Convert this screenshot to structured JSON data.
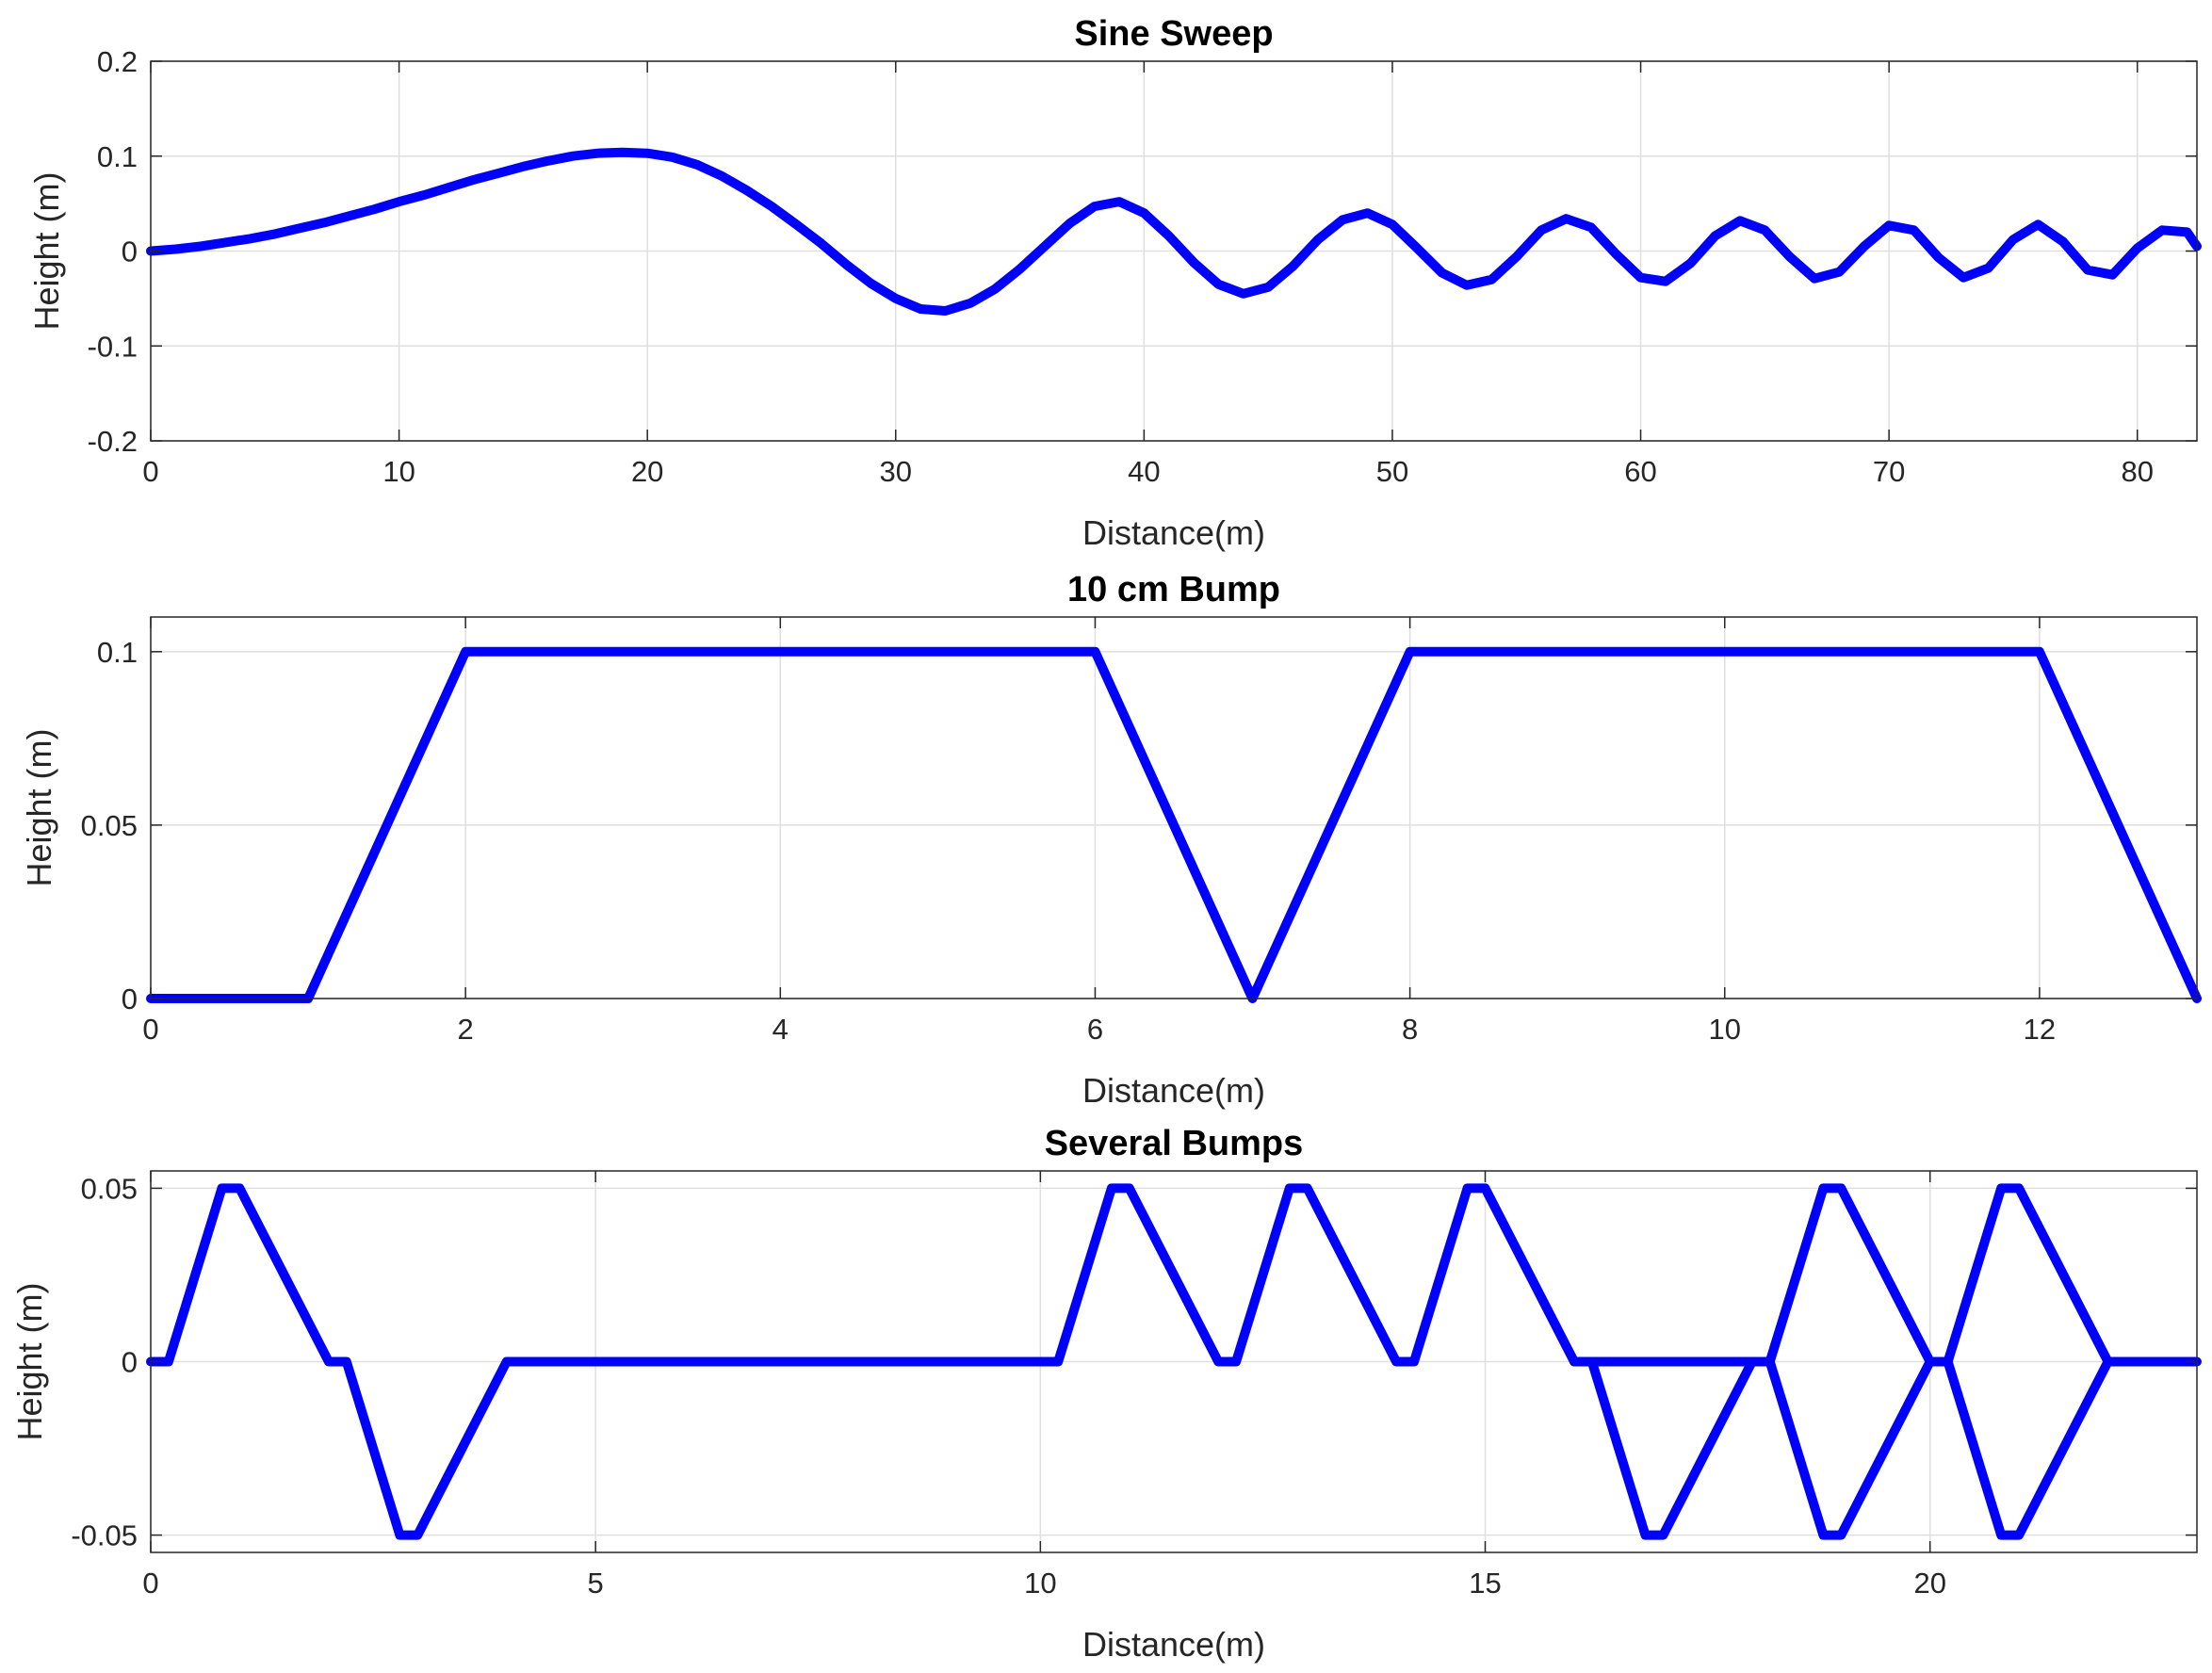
{
  "chart_data": [
    {
      "type": "line",
      "title": "Sine Sweep",
      "xlabel": "Distance(m)",
      "ylabel": "Height (m)",
      "xlim": [
        0,
        82.4
      ],
      "ylim": [
        -0.2,
        0.2
      ],
      "xticks": [
        0,
        10,
        20,
        30,
        40,
        50,
        60,
        70,
        80
      ],
      "xtick_labels": [
        "0",
        "10",
        "20",
        "30",
        "40",
        "50",
        "60",
        "70",
        "80"
      ],
      "yticks": [
        -0.2,
        -0.1,
        0,
        0.1,
        0.2
      ],
      "ytick_labels": [
        "-0.2",
        "-0.1",
        "0",
        "0.1",
        "0.2"
      ],
      "grid": true,
      "color": "#0000ff",
      "series": [
        {
          "x": [
            0,
            1,
            2,
            3,
            4,
            5,
            6,
            7,
            8,
            9,
            10,
            11,
            12,
            13,
            14,
            15,
            16,
            17,
            18,
            19,
            20,
            21,
            22,
            23,
            24,
            25,
            26,
            27,
            28,
            29,
            30,
            31,
            32,
            33,
            34,
            35,
            36,
            37,
            38,
            39,
            40,
            41,
            42,
            43,
            44,
            45,
            46,
            47,
            48,
            49,
            50,
            51,
            52,
            53,
            54,
            55,
            56,
            57,
            58,
            59,
            60,
            61,
            62,
            63,
            64,
            65,
            66,
            67,
            68,
            69,
            70,
            71,
            72,
            73,
            74,
            75,
            76,
            77,
            78,
            79,
            80,
            81,
            82,
            82.4
          ],
          "y": [
            0,
            0.002,
            0.005,
            0.009,
            0.013,
            0.018,
            0.024,
            0.03,
            0.037,
            0.044,
            0.052,
            0.059,
            0.067,
            0.075,
            0.082,
            0.089,
            0.095,
            0.1,
            0.103,
            0.104,
            0.103,
            0.099,
            0.091,
            0.079,
            0.064,
            0.047,
            0.028,
            0.008,
            -0.014,
            -0.034,
            -0.05,
            -0.061,
            -0.063,
            -0.055,
            -0.04,
            -0.019,
            0.005,
            0.029,
            0.047,
            0.052,
            0.04,
            0.016,
            -0.012,
            -0.035,
            -0.045,
            -0.038,
            -0.016,
            0.012,
            0.033,
            0.04,
            0.028,
            0.003,
            -0.023,
            -0.036,
            -0.03,
            -0.006,
            0.022,
            0.034,
            0.025,
            -0.003,
            -0.028,
            -0.032,
            -0.013,
            0.016,
            0.032,
            0.022,
            -0.006,
            -0.029,
            -0.022,
            0.005,
            0.027,
            0.022,
            -0.007,
            -0.028,
            -0.018,
            0.012,
            0.028,
            0.01,
            -0.02,
            -0.025,
            0.003,
            0.022,
            0.02,
            0.005
          ]
        }
      ]
    },
    {
      "type": "line",
      "title": "10 cm Bump",
      "xlabel": "Distance(m)",
      "ylabel": "Height (m)",
      "xlim": [
        0,
        13
      ],
      "ylim": [
        0,
        0.11
      ],
      "xticks": [
        0,
        2,
        4,
        6,
        8,
        10,
        12
      ],
      "xtick_labels": [
        "0",
        "2",
        "4",
        "6",
        "8",
        "10",
        "12"
      ],
      "yticks": [
        0,
        0.05,
        0.1
      ],
      "ytick_labels": [
        "0",
        "0.05",
        "0.1"
      ],
      "grid": true,
      "color": "#0000ff",
      "series": [
        {
          "x": [
            0,
            1,
            2,
            6,
            7,
            8,
            12,
            13
          ],
          "y": [
            0,
            0,
            0.1,
            0.1,
            0,
            0.1,
            0.1,
            0
          ]
        }
      ]
    },
    {
      "type": "line",
      "title": "Several Bumps",
      "xlabel": "Distance(m)",
      "ylabel": "Height (m)",
      "xlim": [
        0,
        23
      ],
      "ylim": [
        -0.055,
        0.055
      ],
      "xticks": [
        0,
        5,
        10,
        15,
        20
      ],
      "xtick_labels": [
        "0",
        "5",
        "10",
        "15",
        "20"
      ],
      "yticks": [
        -0.05,
        0,
        0.05
      ],
      "ytick_labels": [
        "-0.05",
        "0",
        "0.05"
      ],
      "grid": true,
      "color": "#0000ff",
      "series": [
        {
          "x": [
            0,
            0.2,
            0.8,
            1,
            2,
            2.2,
            2.8,
            3,
            4,
            10.2,
            10.8,
            11,
            12,
            12.2,
            12.8,
            13,
            14,
            14.2,
            14.8,
            15,
            16,
            16.2,
            16.8,
            17,
            18,
            18.2,
            18.8,
            19,
            20,
            20.2,
            20.8,
            21,
            22,
            23
          ],
          "y": [
            0,
            0,
            0.05,
            0.05,
            0,
            0,
            -0.05,
            -0.05,
            0,
            0,
            0.05,
            0.05,
            0,
            0,
            0.05,
            0.05,
            0,
            0,
            0.05,
            0.05,
            0,
            0,
            -0.05,
            -0.05,
            0,
            0,
            -0.05,
            -0.05,
            0,
            0,
            -0.05,
            -0.05,
            0,
            0
          ]
        },
        {
          "x": [
            16,
            18,
            18.2,
            18.8,
            19,
            20,
            20.2,
            20.8,
            21,
            22
          ],
          "y": [
            0,
            0,
            0,
            0.05,
            0.05,
            0,
            0,
            0.05,
            0.05,
            0
          ]
        }
      ]
    }
  ]
}
